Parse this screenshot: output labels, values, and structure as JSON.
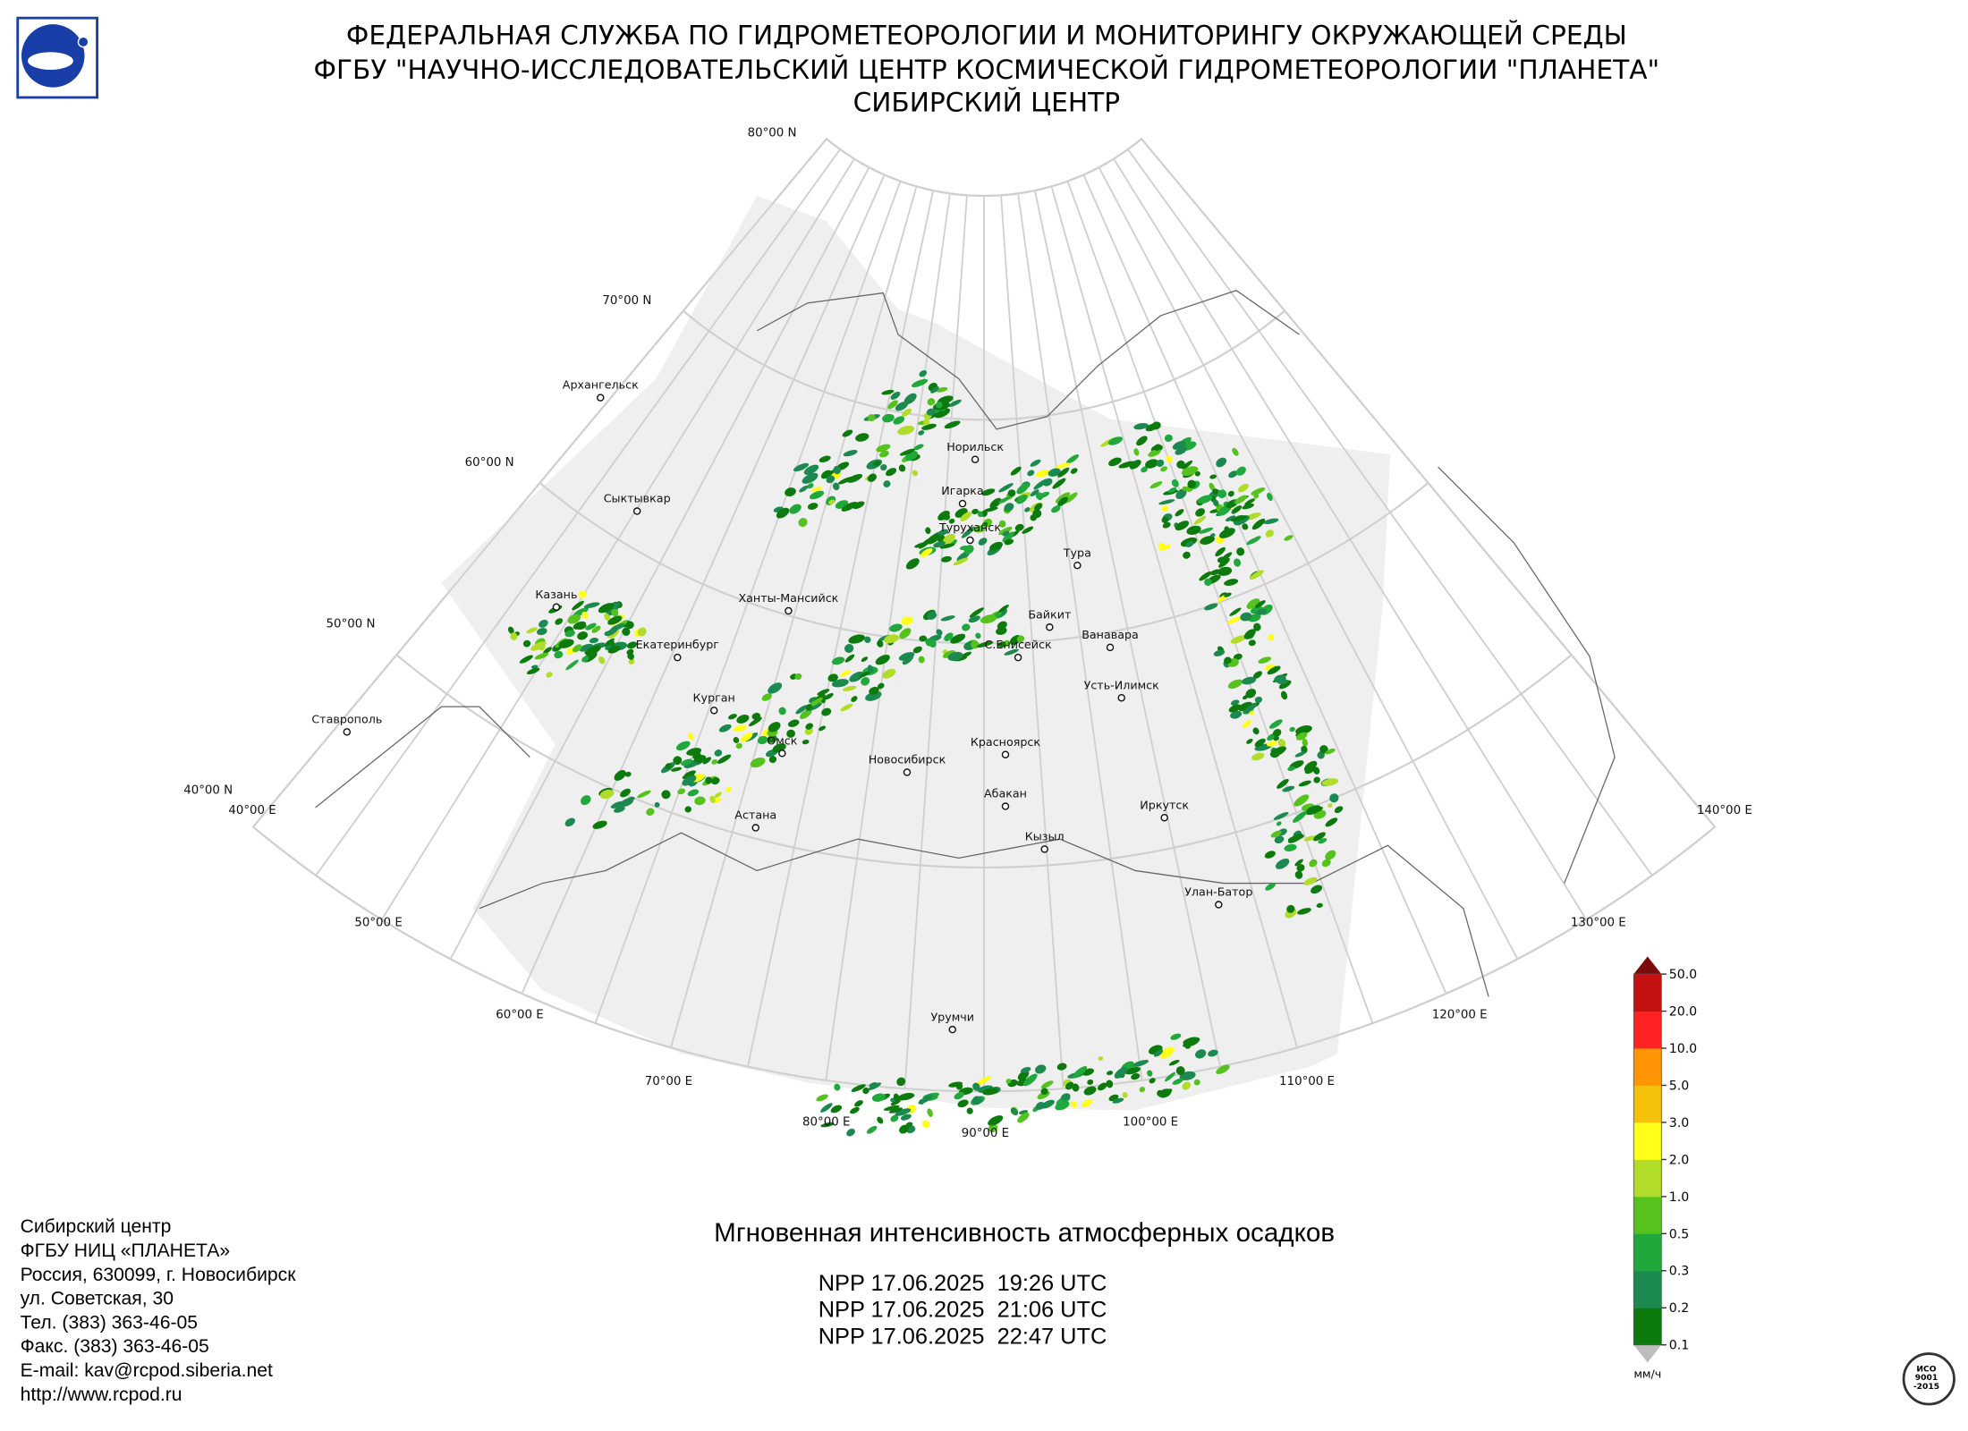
{
  "header": {
    "lines": [
      "ФЕДЕРАЛЬНАЯ СЛУЖБА ПО ГИДРОМЕТЕОРОЛОГИИ И МОНИТОРИНГУ ОКРУЖАЮЩЕЙ СРЕДЫ",
      "ФГБУ \"НАУЧНО-ИССЛЕДОВАТЕЛЬСКИЙ ЦЕНТР КОСМИЧЕСКОЙ ГИДРОМЕТЕОРОЛОГИИ \"ПЛАНЕТА\"",
      "СИБИРСКИЙ ЦЕНТР"
    ]
  },
  "map": {
    "lat_labels": [
      "80°00 N",
      "70°00 N",
      "60°00 N",
      "50°00 N",
      "40°00 N"
    ],
    "lon_labels": [
      "40°00 E",
      "50°00 E",
      "60°00 E",
      "70°00 E",
      "80°00 E",
      "90°00 E",
      "100°00 E",
      "110°00 E",
      "120°00 E",
      "130°00 E",
      "140°00 E"
    ],
    "cities": [
      "Архангельск",
      "Сыктывкар",
      "Казань",
      "Екатеринбург",
      "Курган",
      "Ставрополь",
      "Ханты-Мансийск",
      "Омск",
      "Астана",
      "Новосибирск",
      "Норильск",
      "Игарка",
      "Туруханск",
      "Тура",
      "Байкит",
      "Ванавара",
      "С.Енисейск",
      "Усть-Илимск",
      "Красноярск",
      "Абакан",
      "Иркутск",
      "Кызыл",
      "Улан-Батор",
      "Урумчи"
    ]
  },
  "legend": {
    "ticks": [
      "0.1",
      "0.2",
      "0.3",
      "0.5",
      "1.0",
      "2.0",
      "3.0",
      "5.0",
      "10.0",
      "20.0",
      "50.0"
    ],
    "colors": [
      "#0d7a0d",
      "#1c8a50",
      "#20a83c",
      "#55c21e",
      "#b2dc2a",
      "#ffff1a",
      "#f6c10a",
      "#ff9405",
      "#ff2222",
      "#c41010"
    ],
    "over_color": "#7a0c0c",
    "under_color": "#bdbdbd",
    "unit": "мм/ч"
  },
  "product": {
    "title": "Мгновенная интенсивность атмосферных осадков",
    "passes": [
      "NPP 17.06.2025  19:26 UTC",
      "NPP 17.06.2025  21:06 UTC",
      "NPP 17.06.2025  22:47 UTC"
    ]
  },
  "footer": {
    "lines": [
      "Сибирский центр",
      "ФГБУ НИЦ «ПЛАНЕТА»",
      "Россия, 630099, г. Новосибирск",
      "ул. Советская, 30",
      "Тел. (383) 363-46-05",
      "Факс. (383) 363-46-05",
      "E-mail: kav@rcpod.siberia.net",
      "http://www.rcpod.ru"
    ]
  },
  "badge": {
    "lines": [
      "ИСО",
      "9001",
      "-2015"
    ]
  }
}
